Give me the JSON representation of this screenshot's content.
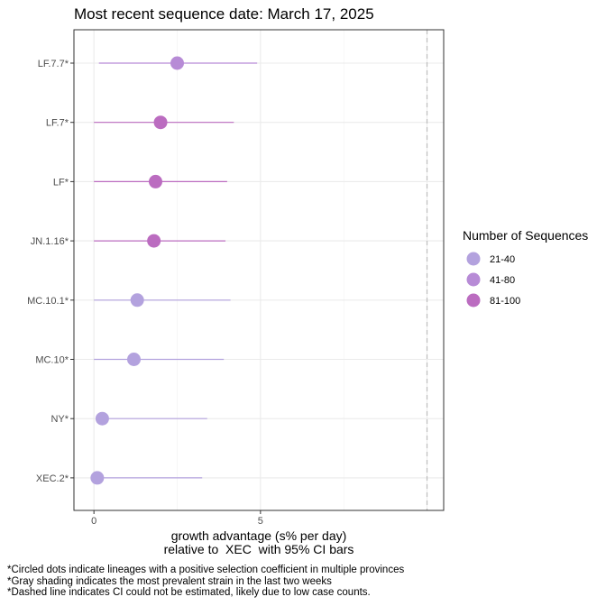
{
  "chart_data": {
    "type": "scatter",
    "title": "Most recent sequence date: March 17, 2025",
    "xlabel_line1": "growth advantage (s% per day)",
    "xlabel_line2": "relative to  XEC  with 95% CI bars",
    "ylabel": "",
    "xlim": [
      -0.6,
      10.5
    ],
    "x_ticks": [
      0,
      5
    ],
    "x_tick_labels": [
      "0",
      "5"
    ],
    "dashed_line_x": 10.0,
    "grid": true,
    "legend_position": "right",
    "legend": {
      "title": "Number of Sequences",
      "entries": [
        {
          "label": "21-40",
          "color": "#b3a2de"
        },
        {
          "label": "41-80",
          "color": "#b78bd6"
        },
        {
          "label": "81-100",
          "color": "#bb6cc0"
        }
      ]
    },
    "categories": [
      "LF.7.7*",
      "LF.7*",
      "LF*",
      "JN.1.16*",
      "MC.10.1*",
      "MC.10*",
      "NY*",
      "XEC.2*"
    ],
    "points": [
      {
        "lineage": "LF.7.7*",
        "estimate": 2.5,
        "ci_low": 0.15,
        "ci_high": 4.9,
        "group": "41-80"
      },
      {
        "lineage": "LF.7*",
        "estimate": 2.0,
        "ci_low": 0.0,
        "ci_high": 4.2,
        "group": "81-100"
      },
      {
        "lineage": "LF*",
        "estimate": 1.85,
        "ci_low": 0.0,
        "ci_high": 4.0,
        "group": "81-100"
      },
      {
        "lineage": "JN.1.16*",
        "estimate": 1.8,
        "ci_low": 0.0,
        "ci_high": 3.95,
        "group": "81-100"
      },
      {
        "lineage": "MC.10.1*",
        "estimate": 1.3,
        "ci_low": 0.0,
        "ci_high": 4.1,
        "group": "21-40"
      },
      {
        "lineage": "MC.10*",
        "estimate": 1.2,
        "ci_low": 0.0,
        "ci_high": 3.9,
        "group": "21-40"
      },
      {
        "lineage": "NY*",
        "estimate": 0.25,
        "ci_low": 0.1,
        "ci_high": 3.4,
        "group": "21-40"
      },
      {
        "lineage": "XEC.2*",
        "estimate": 0.1,
        "ci_low": 0.0,
        "ci_high": 3.25,
        "group": "21-40"
      }
    ]
  },
  "footnotes": [
    "*Circled dots indicate lineages with a positive selection coefficient in multiple provinces",
    "*Gray shading indicates the most prevalent strain in the last two weeks",
    "*Dashed line indicates CI could not be estimated, likely due to low case counts."
  ]
}
